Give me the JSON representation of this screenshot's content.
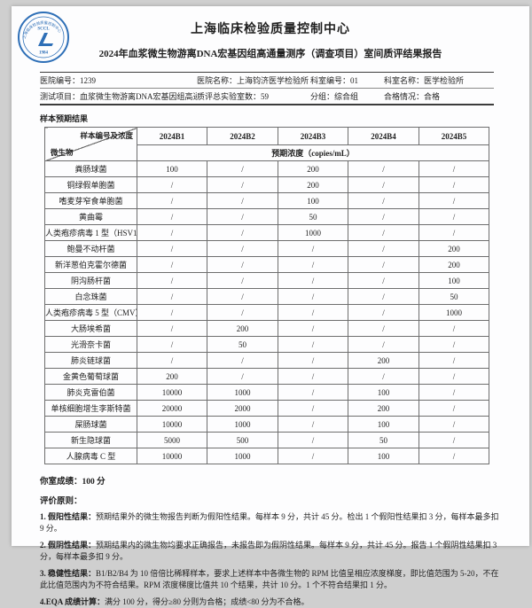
{
  "page": {
    "org_title": "上海临床检验质量控制中心",
    "report_title": "2024年血浆微生物游离DNA宏基因组高通量测序（调查项目）室间质评结果报告"
  },
  "logo": {
    "arc_text": "上海临床检验质量控制中心",
    "acronym": "SCCL",
    "mark": "L",
    "year": "1984",
    "color": "#2e6fb7"
  },
  "meta": {
    "rows": [
      {
        "fields": [
          {
            "label": "医院编号：",
            "value": "1239"
          },
          {
            "label": "医院名称：",
            "value": "上海钧济医学检验所"
          },
          {
            "label": "科室编号：",
            "value": "01"
          },
          {
            "label": "科室名称：",
            "value": "医学检验所"
          }
        ]
      },
      {
        "fields": [
          {
            "label": "测试项目：",
            "value": "血浆微生物游离DNA宏基因组高通量测序"
          },
          {
            "label": "质评总实验室数：",
            "value": "59"
          },
          {
            "label": "分组：",
            "value": "综合组"
          },
          {
            "label": "合格情况：",
            "value": "合格"
          }
        ]
      }
    ]
  },
  "table": {
    "section_title": "样本预期结果",
    "corner_top": "样本编号及浓度",
    "corner_bottom": "微生物",
    "columns": [
      "2024B1",
      "2024B2",
      "2024B3",
      "2024B4",
      "2024B5"
    ],
    "subheader": "预期浓度（copies/mL）",
    "rows": [
      {
        "name": "粪肠球菌",
        "values": [
          "100",
          "/",
          "200",
          "/",
          "/"
        ]
      },
      {
        "name": "铜绿假单胞菌",
        "values": [
          "/",
          "/",
          "200",
          "/",
          "/"
        ]
      },
      {
        "name": "嗜麦芽窄食单胞菌",
        "values": [
          "/",
          "/",
          "100",
          "/",
          "/"
        ]
      },
      {
        "name": "黄曲霉",
        "values": [
          "/",
          "/",
          "50",
          "/",
          "/"
        ]
      },
      {
        "name": "人类疱疹病毒 1 型（HSV1）",
        "values": [
          "/",
          "/",
          "1000",
          "/",
          "/"
        ]
      },
      {
        "name": "鲍曼不动杆菌",
        "values": [
          "/",
          "/",
          "/",
          "/",
          "200"
        ]
      },
      {
        "name": "新洋葱伯克霍尔德菌",
        "values": [
          "/",
          "/",
          "/",
          "/",
          "200"
        ]
      },
      {
        "name": "阴沟肠杆菌",
        "values": [
          "/",
          "/",
          "/",
          "/",
          "100"
        ]
      },
      {
        "name": "白念珠菌",
        "values": [
          "/",
          "/",
          "/",
          "/",
          "50"
        ]
      },
      {
        "name": "人类疱疹病毒 5 型（CMV）",
        "values": [
          "/",
          "/",
          "/",
          "/",
          "1000"
        ]
      },
      {
        "name": "大肠埃希菌",
        "values": [
          "/",
          "200",
          "/",
          "/",
          "/"
        ]
      },
      {
        "name": "光滑奈卡菌",
        "values": [
          "/",
          "50",
          "/",
          "/",
          "/"
        ]
      },
      {
        "name": "肺炎链球菌",
        "values": [
          "/",
          "/",
          "/",
          "200",
          "/"
        ]
      },
      {
        "name": "金黄色葡萄球菌",
        "values": [
          "200",
          "/",
          "/",
          "/",
          "/"
        ]
      },
      {
        "name": "肺炎克雷伯菌",
        "values": [
          "10000",
          "1000",
          "/",
          "100",
          "/"
        ]
      },
      {
        "name": "单核细胞增生李斯特菌",
        "values": [
          "20000",
          "2000",
          "/",
          "200",
          "/"
        ]
      },
      {
        "name": "屎肠球菌",
        "values": [
          "10000",
          "1000",
          "/",
          "100",
          "/"
        ]
      },
      {
        "name": "新生隐球菌",
        "values": [
          "5000",
          "500",
          "/",
          "50",
          "/"
        ]
      },
      {
        "name": "人腺病毒 C 型",
        "values": [
          "10000",
          "1000",
          "/",
          "100",
          "/"
        ]
      }
    ]
  },
  "score": {
    "label": "你室成绩：",
    "value": "100 分"
  },
  "criteria": {
    "heading": "评价原则：",
    "items": [
      {
        "label": "1. 假阳性结果：",
        "text": "预期结果外的微生物报告判断为假阳性结果。每样本 9 分，共计 45 分。检出 1 个假阳性结果扣 3 分，每样本最多扣 9 分。"
      },
      {
        "label": "2. 假阴性结果：",
        "text": "预期结果内的微生物均要求正确报告，未报告即为假阴性结果。每样本 9 分，共计 45 分。报告 1 个假阴性结果扣 3 分，每样本最多扣 9 分。"
      },
      {
        "label": "3. 稳健性结果：",
        "text": "B1/B2/B4 为 10 倍倍比稀释样本，要求上述样本中各微生物的 RPM 比值呈相应浓度梯度，即比值范围为 5-20，不在此比值范围内为不符合结果。RPM 浓度梯度比值共 10 个结果，共计 10 分。1 个不符合结果扣 1 分。"
      },
      {
        "label": "4.EQA 成绩计算：",
        "text": "满分 100 分，得分≥80 分则为合格；成绩<80 分为不合格。"
      }
    ]
  }
}
